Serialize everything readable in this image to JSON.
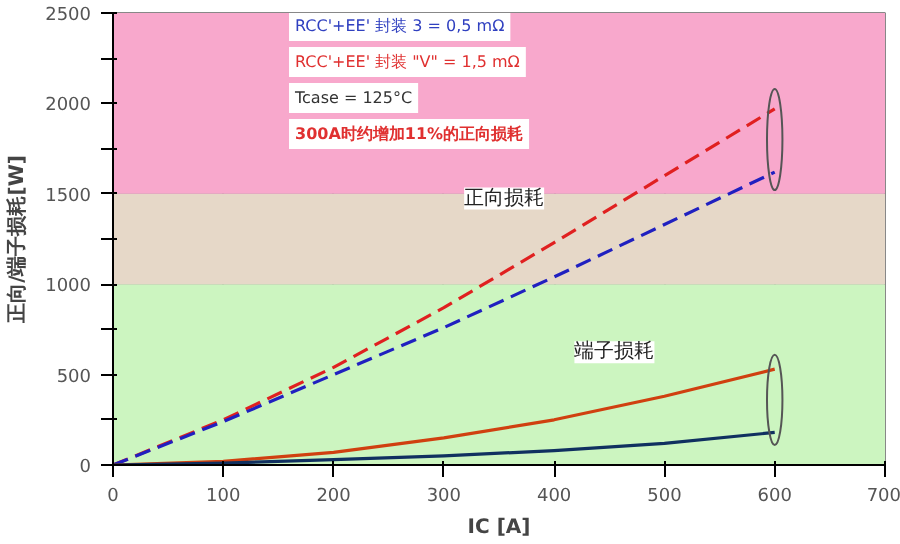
{
  "chart_data": {
    "type": "line",
    "xlabel": "IC [A]",
    "ylabel": "正向/端子损耗[W]",
    "x": [
      0,
      100,
      200,
      300,
      400,
      500,
      600
    ],
    "series": [
      {
        "color": "#e02020",
        "line_style": "dashed",
        "values": [
          0,
          250,
          540,
          870,
          1230,
          1600,
          1970
        ]
      },
      {
        "color": "#2020c0",
        "line_style": "dashed",
        "values": [
          0,
          240,
          500,
          760,
          1040,
          1330,
          1620
        ]
      },
      {
        "color": "#d04010",
        "line_style": "solid",
        "values": [
          0,
          20,
          70,
          150,
          250,
          380,
          530
        ]
      },
      {
        "color": "#103060",
        "line_style": "solid",
        "values": [
          0,
          10,
          30,
          50,
          80,
          120,
          180
        ]
      }
    ],
    "xlim": [
      0,
      700
    ],
    "xticks": [
      0,
      100,
      200,
      300,
      400,
      500,
      600,
      700
    ],
    "ylim": [
      0,
      2500
    ],
    "yticks": [
      0,
      {
        "value": 250,
        "label": null
      },
      500,
      {
        "value": 750,
        "label": null
      },
      1000,
      {
        "value": 1250,
        "label": null
      },
      1500,
      {
        "value": 1750,
        "label": null
      },
      2000,
      {
        "value": 2250,
        "label": null
      },
      2500
    ],
    "grid": true,
    "marker": "none",
    "bands": [
      {
        "axis": "y",
        "from": 0,
        "to": 1000,
        "color": "#ccf5c0"
      },
      {
        "axis": "y",
        "from": 1000,
        "to": 1500,
        "color": "#e6d8c8"
      },
      {
        "axis": "y",
        "from": 1500,
        "to": 2500,
        "color": "#f8a8cc"
      }
    ],
    "annotations": [
      "RCC'+EE' 封装 3 = 0,5 mΩ",
      "RCC'+EE' 封装 \"V\" = 1,5 mΩ",
      "Tcase = 125°C",
      "300A时约增加11%的正向损耗",
      {
        "text": "正向损耗",
        "x": 400,
        "y": 1230
      },
      {
        "text": "端子损耗",
        "x": 500,
        "y": 380
      }
    ]
  }
}
